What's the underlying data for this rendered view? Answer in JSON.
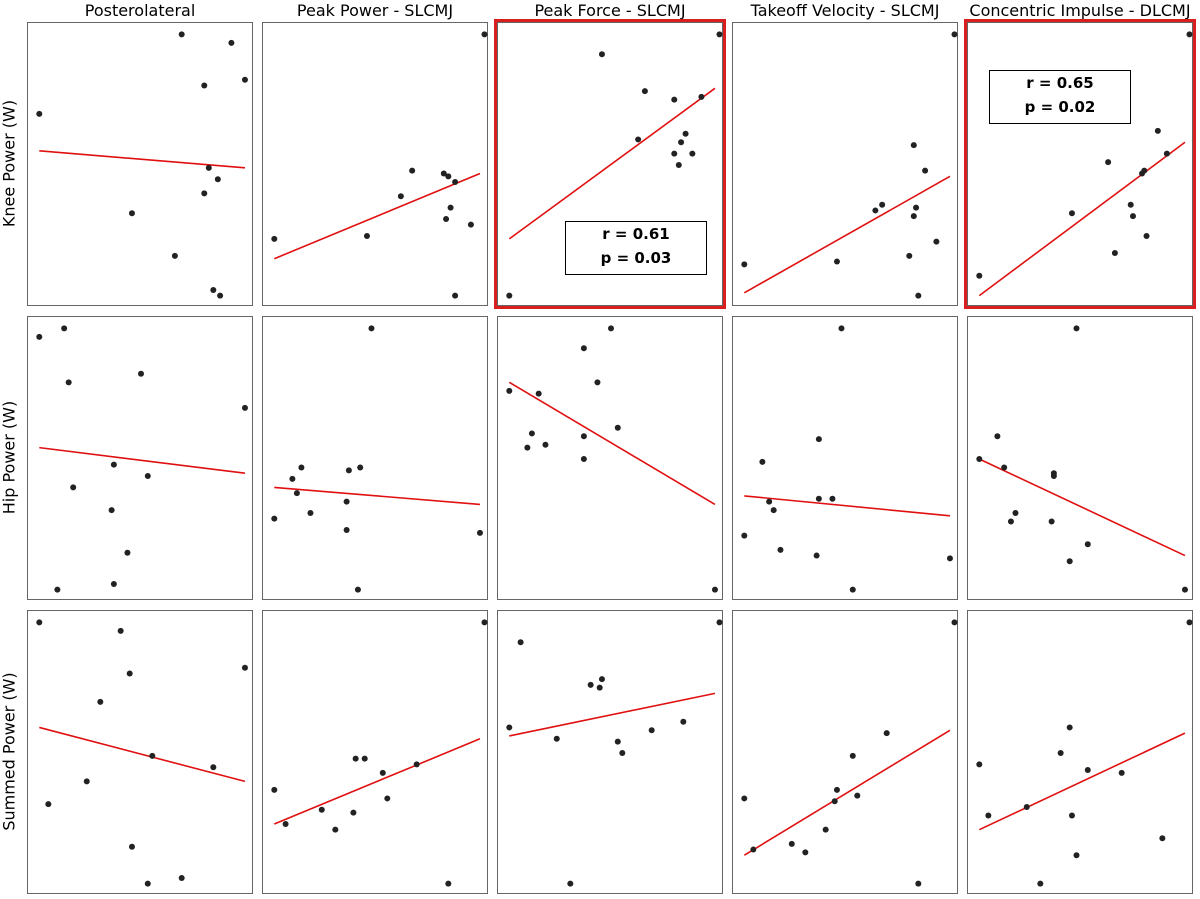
{
  "column_titles": [
    "Posterolateral",
    "Peak Power - SLCMJ",
    "Peak Force - SLCMJ",
    "Takeoff Velocity - SLCMJ",
    "Concentric Impulse - DLCMJ"
  ],
  "row_labels": [
    "Knee Power (W)",
    "Hip Power (W)",
    "Summed Power (W)"
  ],
  "colors": {
    "points": "#222222",
    "fit_line": "#e01010",
    "highlight": "#d81e1e",
    "frame": "#666666"
  },
  "chart_data": [
    {
      "type": "scatter",
      "row": "Knee Power (W)",
      "column": "Posterolateral",
      "highlighted": false,
      "xlim": [
        0,
        1
      ],
      "ylim": [
        0,
        1
      ],
      "points": [
        [
          0.05,
          0.68
        ],
        [
          0.68,
          0.96
        ],
        [
          0.9,
          0.93
        ],
        [
          0.78,
          0.78
        ],
        [
          0.96,
          0.8
        ],
        [
          0.8,
          0.49
        ],
        [
          0.84,
          0.45
        ],
        [
          0.78,
          0.4
        ],
        [
          0.46,
          0.33
        ],
        [
          0.65,
          0.18
        ],
        [
          0.82,
          0.06
        ],
        [
          0.85,
          0.04
        ]
      ],
      "fit": [
        [
          0.05,
          0.55
        ],
        [
          0.96,
          0.49
        ]
      ]
    },
    {
      "type": "scatter",
      "row": "Knee Power (W)",
      "column": "Peak Power - SLCMJ",
      "highlighted": false,
      "xlim": [
        0,
        1
      ],
      "ylim": [
        0,
        1
      ],
      "points": [
        [
          0.05,
          0.24
        ],
        [
          0.46,
          0.25
        ],
        [
          0.61,
          0.39
        ],
        [
          0.66,
          0.48
        ],
        [
          0.8,
          0.47
        ],
        [
          0.82,
          0.46
        ],
        [
          0.85,
          0.44
        ],
        [
          0.83,
          0.35
        ],
        [
          0.81,
          0.31
        ],
        [
          0.92,
          0.29
        ],
        [
          0.98,
          0.96
        ],
        [
          0.85,
          0.04
        ]
      ],
      "fit": [
        [
          0.05,
          0.17
        ],
        [
          0.96,
          0.47
        ]
      ]
    },
    {
      "type": "scatter",
      "row": "Knee Power (W)",
      "column": "Peak Force - SLCMJ",
      "highlighted": true,
      "xlim": [
        0,
        1
      ],
      "ylim": [
        0,
        1
      ],
      "points": [
        [
          0.05,
          0.04
        ],
        [
          0.46,
          0.89
        ],
        [
          0.65,
          0.76
        ],
        [
          0.62,
          0.59
        ],
        [
          0.78,
          0.73
        ],
        [
          0.9,
          0.74
        ],
        [
          0.83,
          0.61
        ],
        [
          0.81,
          0.58
        ],
        [
          0.78,
          0.54
        ],
        [
          0.86,
          0.54
        ],
        [
          0.8,
          0.5
        ],
        [
          0.98,
          0.96
        ]
      ],
      "fit": [
        [
          0.05,
          0.24
        ],
        [
          0.96,
          0.77
        ]
      ],
      "stats": {
        "r": "r = 0.61",
        "p": "p = 0.03"
      }
    },
    {
      "type": "scatter",
      "row": "Knee Power (W)",
      "column": "Takeoff Velocity - SLCMJ",
      "highlighted": false,
      "xlim": [
        0,
        1
      ],
      "ylim": [
        0,
        1
      ],
      "points": [
        [
          0.05,
          0.15
        ],
        [
          0.46,
          0.16
        ],
        [
          0.63,
          0.34
        ],
        [
          0.66,
          0.36
        ],
        [
          0.8,
          0.57
        ],
        [
          0.85,
          0.48
        ],
        [
          0.81,
          0.35
        ],
        [
          0.8,
          0.32
        ],
        [
          0.9,
          0.23
        ],
        [
          0.78,
          0.18
        ],
        [
          0.82,
          0.04
        ],
        [
          0.98,
          0.96
        ]
      ],
      "fit": [
        [
          0.05,
          0.05
        ],
        [
          0.96,
          0.46
        ]
      ]
    },
    {
      "type": "scatter",
      "row": "Knee Power (W)",
      "column": "Concentric Impulse - DLCMJ",
      "highlighted": true,
      "xlim": [
        0,
        1
      ],
      "ylim": [
        0,
        1
      ],
      "points": [
        [
          0.05,
          0.11
        ],
        [
          0.46,
          0.33
        ],
        [
          0.62,
          0.51
        ],
        [
          0.77,
          0.47
        ],
        [
          0.78,
          0.48
        ],
        [
          0.72,
          0.36
        ],
        [
          0.73,
          0.32
        ],
        [
          0.84,
          0.62
        ],
        [
          0.88,
          0.54
        ],
        [
          0.79,
          0.25
        ],
        [
          0.65,
          0.19
        ],
        [
          0.98,
          0.96
        ]
      ],
      "fit": [
        [
          0.05,
          0.04
        ],
        [
          0.96,
          0.58
        ]
      ],
      "stats": {
        "r": "r = 0.65",
        "p": "p = 0.02"
      }
    },
    {
      "type": "scatter",
      "row": "Hip Power (W)",
      "column": "Posterolateral",
      "highlighted": false,
      "xlim": [
        0,
        1
      ],
      "ylim": [
        0,
        1
      ],
      "points": [
        [
          0.05,
          0.93
        ],
        [
          0.16,
          0.96
        ],
        [
          0.18,
          0.77
        ],
        [
          0.5,
          0.8
        ],
        [
          0.96,
          0.68
        ],
        [
          0.2,
          0.4
        ],
        [
          0.38,
          0.48
        ],
        [
          0.53,
          0.44
        ],
        [
          0.37,
          0.32
        ],
        [
          0.44,
          0.17
        ],
        [
          0.13,
          0.04
        ],
        [
          0.38,
          0.06
        ]
      ],
      "fit": [
        [
          0.05,
          0.54
        ],
        [
          0.96,
          0.45
        ]
      ]
    },
    {
      "type": "scatter",
      "row": "Hip Power (W)",
      "column": "Peak Power - SLCMJ",
      "highlighted": false,
      "xlim": [
        0,
        1
      ],
      "ylim": [
        0,
        1
      ],
      "points": [
        [
          0.05,
          0.29
        ],
        [
          0.13,
          0.43
        ],
        [
          0.17,
          0.47
        ],
        [
          0.15,
          0.38
        ],
        [
          0.21,
          0.31
        ],
        [
          0.38,
          0.46
        ],
        [
          0.43,
          0.47
        ],
        [
          0.37,
          0.35
        ],
        [
          0.37,
          0.25
        ],
        [
          0.42,
          0.04
        ],
        [
          0.48,
          0.96
        ],
        [
          0.96,
          0.24
        ]
      ],
      "fit": [
        [
          0.05,
          0.4
        ],
        [
          0.96,
          0.34
        ]
      ]
    },
    {
      "type": "scatter",
      "row": "Hip Power (W)",
      "column": "Peak Force - SLCMJ",
      "highlighted": false,
      "xlim": [
        0,
        1
      ],
      "ylim": [
        0,
        1
      ],
      "points": [
        [
          0.05,
          0.74
        ],
        [
          0.18,
          0.73
        ],
        [
          0.15,
          0.59
        ],
        [
          0.13,
          0.54
        ],
        [
          0.21,
          0.55
        ],
        [
          0.38,
          0.89
        ],
        [
          0.44,
          0.77
        ],
        [
          0.5,
          0.96
        ],
        [
          0.38,
          0.58
        ],
        [
          0.38,
          0.5
        ],
        [
          0.53,
          0.61
        ],
        [
          0.96,
          0.04
        ]
      ],
      "fit": [
        [
          0.05,
          0.77
        ],
        [
          0.96,
          0.34
        ]
      ]
    },
    {
      "type": "scatter",
      "row": "Hip Power (W)",
      "column": "Takeoff Velocity - SLCMJ",
      "highlighted": false,
      "xlim": [
        0,
        1
      ],
      "ylim": [
        0,
        1
      ],
      "points": [
        [
          0.05,
          0.23
        ],
        [
          0.13,
          0.49
        ],
        [
          0.16,
          0.35
        ],
        [
          0.18,
          0.32
        ],
        [
          0.21,
          0.18
        ],
        [
          0.38,
          0.57
        ],
        [
          0.38,
          0.36
        ],
        [
          0.44,
          0.36
        ],
        [
          0.37,
          0.16
        ],
        [
          0.48,
          0.96
        ],
        [
          0.53,
          0.04
        ],
        [
          0.96,
          0.15
        ]
      ],
      "fit": [
        [
          0.05,
          0.37
        ],
        [
          0.96,
          0.3
        ]
      ]
    },
    {
      "type": "scatter",
      "row": "Hip Power (W)",
      "column": "Concentric Impulse - DLCMJ",
      "highlighted": false,
      "xlim": [
        0,
        1
      ],
      "ylim": [
        0,
        1
      ],
      "points": [
        [
          0.05,
          0.5
        ],
        [
          0.13,
          0.58
        ],
        [
          0.16,
          0.47
        ],
        [
          0.21,
          0.31
        ],
        [
          0.19,
          0.28
        ],
        [
          0.38,
          0.45
        ],
        [
          0.38,
          0.44
        ],
        [
          0.37,
          0.28
        ],
        [
          0.53,
          0.2
        ],
        [
          0.45,
          0.14
        ],
        [
          0.48,
          0.96
        ],
        [
          0.96,
          0.04
        ]
      ],
      "fit": [
        [
          0.05,
          0.5
        ],
        [
          0.96,
          0.16
        ]
      ]
    },
    {
      "type": "scatter",
      "row": "Summed Power (W)",
      "column": "Posterolateral",
      "highlighted": false,
      "xlim": [
        0,
        1
      ],
      "ylim": [
        0,
        1
      ],
      "points": [
        [
          0.05,
          0.96
        ],
        [
          0.41,
          0.93
        ],
        [
          0.45,
          0.78
        ],
        [
          0.32,
          0.68
        ],
        [
          0.96,
          0.8
        ],
        [
          0.55,
          0.49
        ],
        [
          0.82,
          0.45
        ],
        [
          0.26,
          0.4
        ],
        [
          0.09,
          0.32
        ],
        [
          0.46,
          0.17
        ],
        [
          0.53,
          0.04
        ],
        [
          0.68,
          0.06
        ]
      ],
      "fit": [
        [
          0.05,
          0.59
        ],
        [
          0.96,
          0.4
        ]
      ]
    },
    {
      "type": "scatter",
      "row": "Summed Power (W)",
      "column": "Peak Power - SLCMJ",
      "highlighted": false,
      "xlim": [
        0,
        1
      ],
      "ylim": [
        0,
        1
      ],
      "points": [
        [
          0.05,
          0.37
        ],
        [
          0.1,
          0.25
        ],
        [
          0.26,
          0.3
        ],
        [
          0.32,
          0.23
        ],
        [
          0.41,
          0.48
        ],
        [
          0.45,
          0.48
        ],
        [
          0.4,
          0.29
        ],
        [
          0.53,
          0.43
        ],
        [
          0.55,
          0.34
        ],
        [
          0.68,
          0.46
        ],
        [
          0.82,
          0.04
        ],
        [
          0.98,
          0.96
        ]
      ],
      "fit": [
        [
          0.05,
          0.25
        ],
        [
          0.96,
          0.55
        ]
      ]
    },
    {
      "type": "scatter",
      "row": "Summed Power (W)",
      "column": "Peak Force - SLCMJ",
      "highlighted": false,
      "xlim": [
        0,
        1
      ],
      "ylim": [
        0,
        1
      ],
      "points": [
        [
          0.05,
          0.59
        ],
        [
          0.1,
          0.89
        ],
        [
          0.26,
          0.55
        ],
        [
          0.41,
          0.74
        ],
        [
          0.45,
          0.73
        ],
        [
          0.46,
          0.76
        ],
        [
          0.53,
          0.54
        ],
        [
          0.55,
          0.5
        ],
        [
          0.68,
          0.58
        ],
        [
          0.82,
          0.61
        ],
        [
          0.32,
          0.04
        ],
        [
          0.98,
          0.96
        ]
      ],
      "fit": [
        [
          0.05,
          0.56
        ],
        [
          0.96,
          0.71
        ]
      ]
    },
    {
      "type": "scatter",
      "row": "Summed Power (W)",
      "column": "Takeoff Velocity - SLCMJ",
      "highlighted": false,
      "xlim": [
        0,
        1
      ],
      "ylim": [
        0,
        1
      ],
      "points": [
        [
          0.05,
          0.34
        ],
        [
          0.09,
          0.16
        ],
        [
          0.26,
          0.18
        ],
        [
          0.32,
          0.15
        ],
        [
          0.41,
          0.23
        ],
        [
          0.45,
          0.33
        ],
        [
          0.46,
          0.37
        ],
        [
          0.53,
          0.49
        ],
        [
          0.55,
          0.35
        ],
        [
          0.68,
          0.57
        ],
        [
          0.82,
          0.04
        ],
        [
          0.98,
          0.96
        ]
      ],
      "fit": [
        [
          0.05,
          0.14
        ],
        [
          0.96,
          0.58
        ]
      ]
    },
    {
      "type": "scatter",
      "row": "Summed Power (W)",
      "column": "Concentric Impulse - DLCMJ",
      "highlighted": false,
      "xlim": [
        0,
        1
      ],
      "ylim": [
        0,
        1
      ],
      "points": [
        [
          0.05,
          0.46
        ],
        [
          0.09,
          0.28
        ],
        [
          0.26,
          0.31
        ],
        [
          0.41,
          0.5
        ],
        [
          0.45,
          0.59
        ],
        [
          0.53,
          0.44
        ],
        [
          0.46,
          0.28
        ],
        [
          0.68,
          0.43
        ],
        [
          0.48,
          0.14
        ],
        [
          0.32,
          0.04
        ],
        [
          0.86,
          0.2
        ],
        [
          0.98,
          0.96
        ]
      ],
      "fit": [
        [
          0.05,
          0.23
        ],
        [
          0.96,
          0.57
        ]
      ]
    }
  ]
}
